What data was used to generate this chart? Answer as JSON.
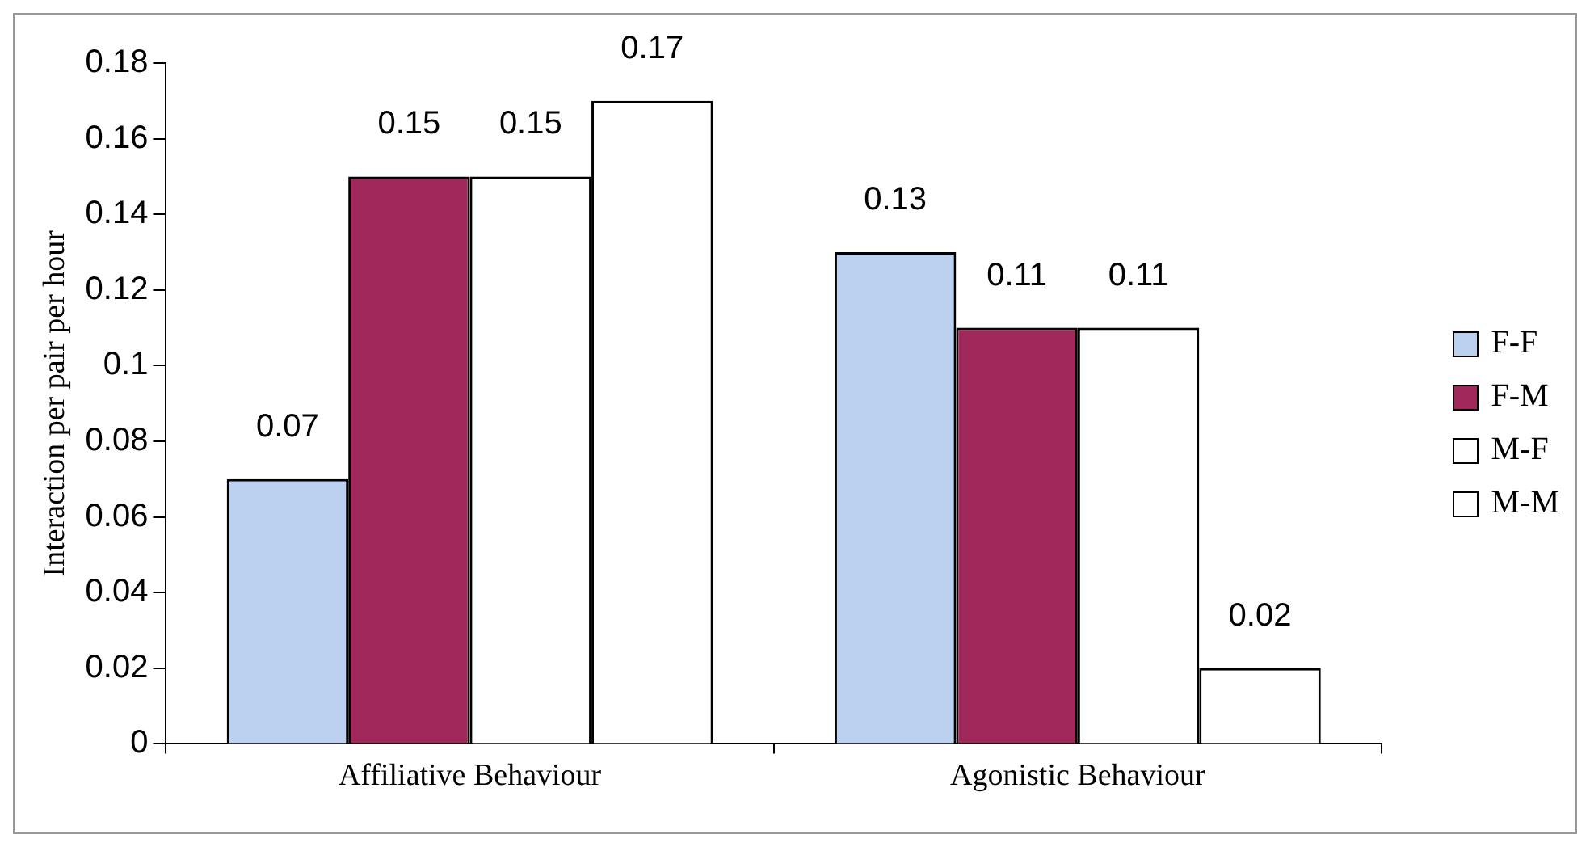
{
  "chart_data": {
    "type": "bar",
    "ylabel": "Interaction per pair per hour",
    "categories": [
      "Affiliative Behaviour",
      "Agonistic Behaviour"
    ],
    "series": [
      {
        "name": "F-F",
        "color": "#bcd0f0",
        "values": [
          0.07,
          0.13
        ]
      },
      {
        "name": "F-M",
        "color": "#a0285a",
        "values": [
          0.15,
          0.11
        ]
      },
      {
        "name": "M-F",
        "color": "#ffffff",
        "values": [
          0.15,
          0.11
        ]
      },
      {
        "name": "M-M",
        "color": "#ffffff",
        "values": [
          0.17,
          0.02
        ]
      }
    ],
    "ylim": [
      0,
      0.18
    ],
    "yticks": [
      0,
      0.02,
      0.04,
      0.06,
      0.08,
      0.1,
      0.12,
      0.14,
      0.16,
      0.18
    ],
    "data_labels": true,
    "grid": false,
    "legend": "right"
  }
}
